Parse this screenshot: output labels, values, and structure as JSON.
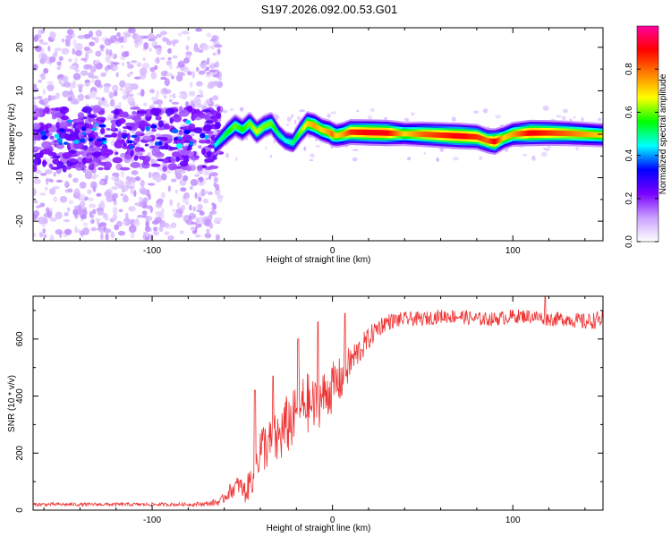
{
  "title": "S197.2026.092.00.53.G01",
  "chart_data": [
    {
      "type": "heatmap",
      "title": "S197.2026.092.00.53.G01",
      "xlabel": "Height of straight line (km)",
      "ylabel": "Frequency (Hz)",
      "xlim": [
        -166,
        150
      ],
      "ylim": [
        -24.5,
        24.5
      ],
      "xticks": [
        -100,
        0,
        100
      ],
      "xtick_labels": [
        "-100",
        "0",
        "100"
      ],
      "yticks": [
        -20,
        -10,
        0,
        10,
        20
      ],
      "ytick_labels": [
        "-20",
        "-10",
        "0",
        "10",
        "20"
      ],
      "colorbar": {
        "label": "Normalized spectral amplitude",
        "range": [
          0.0,
          1.0
        ],
        "ticks": [
          0.0,
          0.2,
          0.4,
          0.6,
          0.8
        ],
        "tick_labels": [
          "0.0",
          "0.2",
          "0.4",
          "0.6",
          "0.8"
        ],
        "colors": [
          "#ffffff",
          "#c9a0ff",
          "#7a00ff",
          "#0000ff",
          "#00ffff",
          "#00ff00",
          "#ffff00",
          "#ff8000",
          "#ff0000",
          "#ff00a0"
        ]
      },
      "ridge": {
        "x": [
          -65,
          -58,
          -54,
          -50,
          -46,
          -42,
          -38,
          -34,
          -30,
          -26,
          -22,
          -18,
          -14,
          -10,
          -6,
          -2,
          0,
          2,
          6,
          10,
          20,
          30,
          40,
          50,
          60,
          70,
          80,
          86,
          90,
          95,
          100,
          110,
          120,
          130,
          140,
          150
        ],
        "y": [
          -2.5,
          0.5,
          2.0,
          1.0,
          2.5,
          0.5,
          1.8,
          2.5,
          0.0,
          -1.5,
          -2.0,
          0.5,
          2.5,
          2.0,
          1.0,
          0.5,
          0.0,
          -0.3,
          0.0,
          0.5,
          0.4,
          0.3,
          0.1,
          0.0,
          -0.2,
          -0.4,
          -0.6,
          -1.5,
          -1.7,
          -0.8,
          0.0,
          0.3,
          0.3,
          0.2,
          0.0,
          -0.2
        ],
        "amplitude": [
          0.45,
          0.55,
          0.6,
          0.55,
          0.6,
          0.65,
          0.6,
          0.6,
          0.5,
          0.45,
          0.5,
          0.6,
          0.7,
          0.75,
          0.7,
          0.75,
          0.8,
          0.7,
          0.75,
          0.85,
          0.9,
          0.9,
          0.7,
          0.8,
          0.85,
          0.9,
          0.85,
          0.8,
          0.9,
          0.7,
          0.75,
          0.9,
          0.85,
          0.8,
          0.75,
          0.7
        ]
      },
      "noise_region": {
        "x": [
          -166,
          -62
        ],
        "freq_spread": 24,
        "core_freq": [
          -8,
          6
        ]
      }
    },
    {
      "type": "line",
      "xlabel": "Height of straight line (km)",
      "ylabel": "SNR (10 * v/v)",
      "xlim": [
        -166,
        150
      ],
      "ylim": [
        0,
        750
      ],
      "xticks": [
        -100,
        0,
        100
      ],
      "xtick_labels": [
        "-100",
        "0",
        "100"
      ],
      "yticks": [
        0,
        200,
        400,
        600
      ],
      "ytick_labels": [
        "0",
        "200",
        "400",
        "600"
      ],
      "color": "#ee3333",
      "trend": {
        "x": [
          -166,
          -80,
          -70,
          -62,
          -58,
          -52,
          -48,
          -44,
          -40,
          -35,
          -30,
          -25,
          -20,
          -15,
          -10,
          -5,
          0,
          5,
          10,
          15,
          20,
          25,
          30,
          40,
          50,
          60,
          70,
          80,
          90,
          100,
          110,
          120,
          130,
          140,
          150
        ],
        "y": [
          20,
          20,
          22,
          30,
          60,
          90,
          60,
          130,
          220,
          230,
          250,
          300,
          330,
          380,
          360,
          400,
          430,
          460,
          520,
          560,
          600,
          640,
          660,
          670,
          670,
          680,
          680,
          670,
          670,
          680,
          680,
          670,
          670,
          660,
          670
        ],
        "noise": [
          6,
          6,
          8,
          15,
          25,
          35,
          40,
          70,
          90,
          90,
          100,
          110,
          100,
          110,
          100,
          90,
          90,
          80,
          60,
          50,
          40,
          35,
          30,
          25,
          25,
          25,
          25,
          25,
          25,
          25,
          25,
          25,
          25,
          30,
          30
        ]
      },
      "spikes": [
        {
          "x": -43,
          "y": 420
        },
        {
          "x": -33,
          "y": 470
        },
        {
          "x": -19,
          "y": 600
        },
        {
          "x": -8,
          "y": 660
        },
        {
          "x": 7,
          "y": 690
        },
        {
          "x": 118,
          "y": 750
        }
      ]
    }
  ]
}
